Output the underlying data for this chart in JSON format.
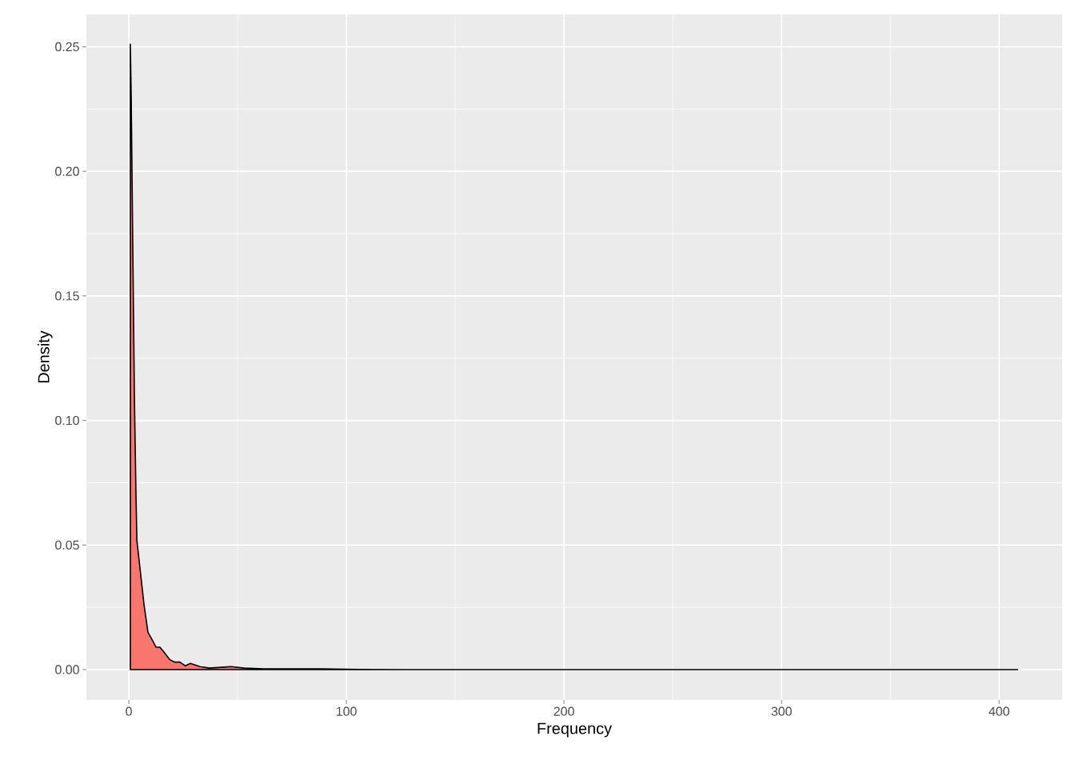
{
  "chart_data": {
    "type": "area",
    "xlabel": "Frequency",
    "ylabel": "Density",
    "color": "#f8766d",
    "x": [
      0.7,
      1.1,
      1.8,
      2.6,
      3.3,
      3.7,
      5.1,
      7,
      8.8,
      10.7,
      12.5,
      14.3,
      16.2,
      18.8,
      21,
      23.5,
      26,
      28.3,
      32.7,
      37,
      43.8,
      47,
      53,
      62,
      88,
      106,
      125,
      200,
      300,
      408.5
    ],
    "values": [
      0.251,
      0.23,
      0.172,
      0.108,
      0.07,
      0.052,
      0.041,
      0.026,
      0.015,
      0.012,
      0.009,
      0.009,
      0.007,
      0.004,
      0.003,
      0.003,
      0.0015,
      0.0025,
      0.0012,
      0.0006,
      0.001,
      0.0012,
      0.0006,
      0.0003,
      0.0003,
      0.0001,
      0,
      0,
      0,
      0
    ],
    "xlim": [
      -19.5,
      429
    ],
    "ylim": [
      -0.0122,
      0.263
    ],
    "xticks": [
      0,
      100,
      200,
      300,
      400
    ],
    "yticks": [
      {
        "value": 0,
        "label": "0.00"
      },
      {
        "value": 0.05,
        "label": "0.05"
      },
      {
        "value": 0.1,
        "label": "0.10"
      },
      {
        "value": 0.15,
        "label": "0.15"
      },
      {
        "value": 0.2,
        "label": "0.20"
      },
      {
        "value": 0.25,
        "label": "0.25"
      }
    ],
    "grid": true
  }
}
